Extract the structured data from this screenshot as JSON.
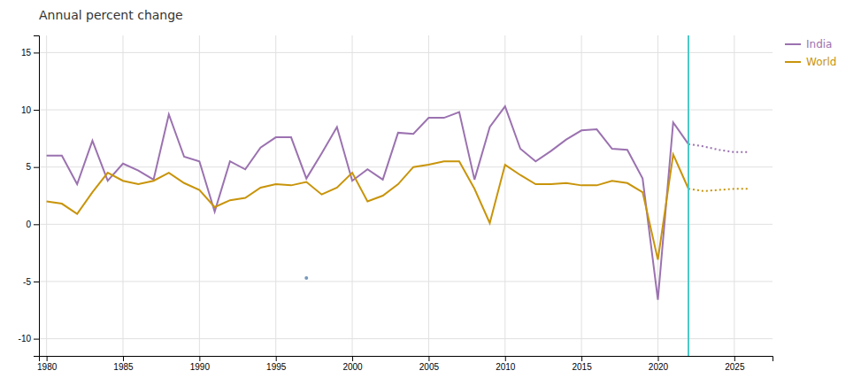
{
  "chart_data": {
    "type": "line",
    "title": "Annual percent change",
    "x": [
      1980,
      1981,
      1982,
      1983,
      1984,
      1985,
      1986,
      1987,
      1988,
      1989,
      1990,
      1991,
      1992,
      1993,
      1994,
      1995,
      1996,
      1997,
      1998,
      1999,
      2000,
      2001,
      2002,
      2003,
      2004,
      2005,
      2006,
      2007,
      2008,
      2009,
      2010,
      2011,
      2012,
      2013,
      2014,
      2015,
      2016,
      2017,
      2018,
      2019,
      2020,
      2021,
      2022,
      2023,
      2024,
      2025,
      2026
    ],
    "series": [
      {
        "name": "India",
        "color": "#9B72B0",
        "line_style": "solid",
        "values": [
          6.0,
          6.0,
          3.5,
          7.3,
          3.8,
          5.3,
          4.7,
          3.9,
          9.6,
          5.9,
          5.5,
          1.1,
          5.5,
          4.8,
          6.7,
          7.6,
          7.6,
          4.0,
          6.2,
          8.5,
          3.8,
          4.8,
          3.9,
          8.0,
          7.9,
          9.3,
          9.3,
          9.8,
          3.9,
          8.5,
          10.3,
          6.6,
          5.5,
          6.4,
          7.4,
          8.2,
          8.3,
          6.6,
          6.5,
          4.0,
          -6.6,
          8.9,
          7.0,
          null,
          null,
          null,
          null
        ]
      },
      {
        "name": "World",
        "color": "#C8940A",
        "line_style": "solid",
        "values": [
          2.0,
          1.8,
          0.9,
          2.8,
          4.5,
          3.8,
          3.5,
          3.8,
          4.5,
          3.6,
          3.0,
          1.5,
          2.1,
          2.3,
          3.2,
          3.5,
          3.4,
          3.7,
          2.6,
          3.2,
          4.5,
          2.0,
          2.5,
          3.5,
          5.0,
          5.2,
          5.5,
          5.5,
          3.1,
          0.1,
          5.2,
          4.3,
          3.5,
          3.5,
          3.6,
          3.4,
          3.4,
          3.8,
          3.6,
          2.8,
          -3.1,
          6.1,
          3.1,
          null,
          null,
          null,
          null
        ]
      },
      {
        "color": "#9B72B0",
        "line_style": "dotted",
        "values": [
          null,
          null,
          null,
          null,
          null,
          null,
          null,
          null,
          null,
          null,
          null,
          null,
          null,
          null,
          null,
          null,
          null,
          null,
          null,
          null,
          null,
          null,
          null,
          null,
          null,
          null,
          null,
          null,
          null,
          null,
          null,
          null,
          null,
          null,
          null,
          null,
          null,
          null,
          null,
          null,
          null,
          null,
          7.0,
          6.8,
          6.5,
          6.3,
          6.3
        ]
      },
      {
        "color": "#C8940A",
        "line_style": "dotted",
        "values": [
          null,
          null,
          null,
          null,
          null,
          null,
          null,
          null,
          null,
          null,
          null,
          null,
          null,
          null,
          null,
          null,
          null,
          null,
          null,
          null,
          null,
          null,
          null,
          null,
          null,
          null,
          null,
          null,
          null,
          null,
          null,
          null,
          null,
          null,
          null,
          null,
          null,
          null,
          null,
          null,
          null,
          null,
          3.1,
          2.9,
          3.0,
          3.1,
          3.1
        ]
      }
    ],
    "annotations": [
      {
        "type": "vline",
        "x": 2022,
        "color": "#4DC8C8"
      },
      {
        "type": "point",
        "x": 1997,
        "y": -4.7,
        "color": "#7799bb"
      }
    ],
    "xlim": [
      1979.5,
      2027.5
    ],
    "xticks": [
      1980,
      1985,
      1990,
      1995,
      2000,
      2005,
      2010,
      2015,
      2020,
      2025
    ],
    "ylim": [
      -11.5,
      16.5
    ],
    "yticks": [
      -10,
      -5,
      0,
      5,
      10,
      15
    ],
    "grid": true,
    "legend": "right"
  }
}
